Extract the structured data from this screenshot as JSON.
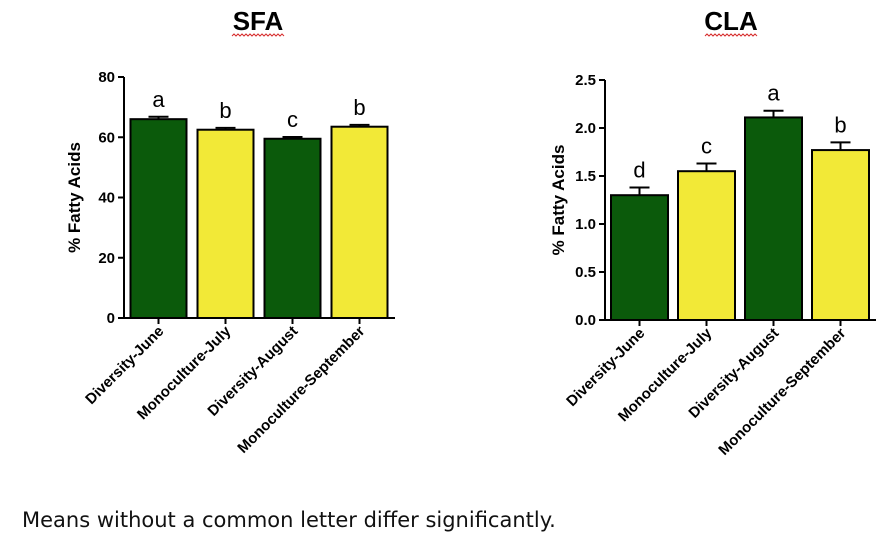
{
  "chart_data": [
    {
      "type": "bar",
      "title": "SFA",
      "ylabel": "% Fatty Acids",
      "xlabel": "",
      "ylim": [
        0,
        80
      ],
      "yticks": [
        "0",
        "20",
        "40",
        "60",
        "80"
      ],
      "ytick_values": [
        0,
        20,
        40,
        60,
        80
      ],
      "categories": [
        "Diversity-June",
        "Monoculture-July",
        "Diversity-August",
        "Monoculture-September"
      ],
      "values": [
        66,
        62.5,
        59.5,
        63.5
      ],
      "errors": [
        0.8,
        0.6,
        0.6,
        0.6
      ],
      "letters": [
        "a",
        "b",
        "c",
        "b"
      ],
      "colors": [
        "#0b5a0b",
        "#f2e937",
        "#0b5a0b",
        "#f2e937"
      ],
      "grid": false
    },
    {
      "type": "bar",
      "title": "CLA",
      "ylabel": "% Fatty Acids",
      "xlabel": "",
      "ylim": [
        0,
        2.5
      ],
      "yticks": [
        "0.0",
        "0.5",
        "1.0",
        "1.5",
        "2.0",
        "2.5"
      ],
      "ytick_values": [
        0,
        0.5,
        1.0,
        1.5,
        2.0,
        2.5
      ],
      "categories": [
        "Diversity-June",
        "Monoculture-July",
        "Diversity-August",
        "Monoculture-September"
      ],
      "values": [
        1.3,
        1.55,
        2.11,
        1.77
      ],
      "errors": [
        0.08,
        0.08,
        0.07,
        0.08
      ],
      "letters": [
        "d",
        "c",
        "a",
        "b"
      ],
      "colors": [
        "#0b5a0b",
        "#f2e937",
        "#0b5a0b",
        "#f2e937"
      ],
      "grid": false
    }
  ],
  "caption": "Means without a common letter differ significantly."
}
